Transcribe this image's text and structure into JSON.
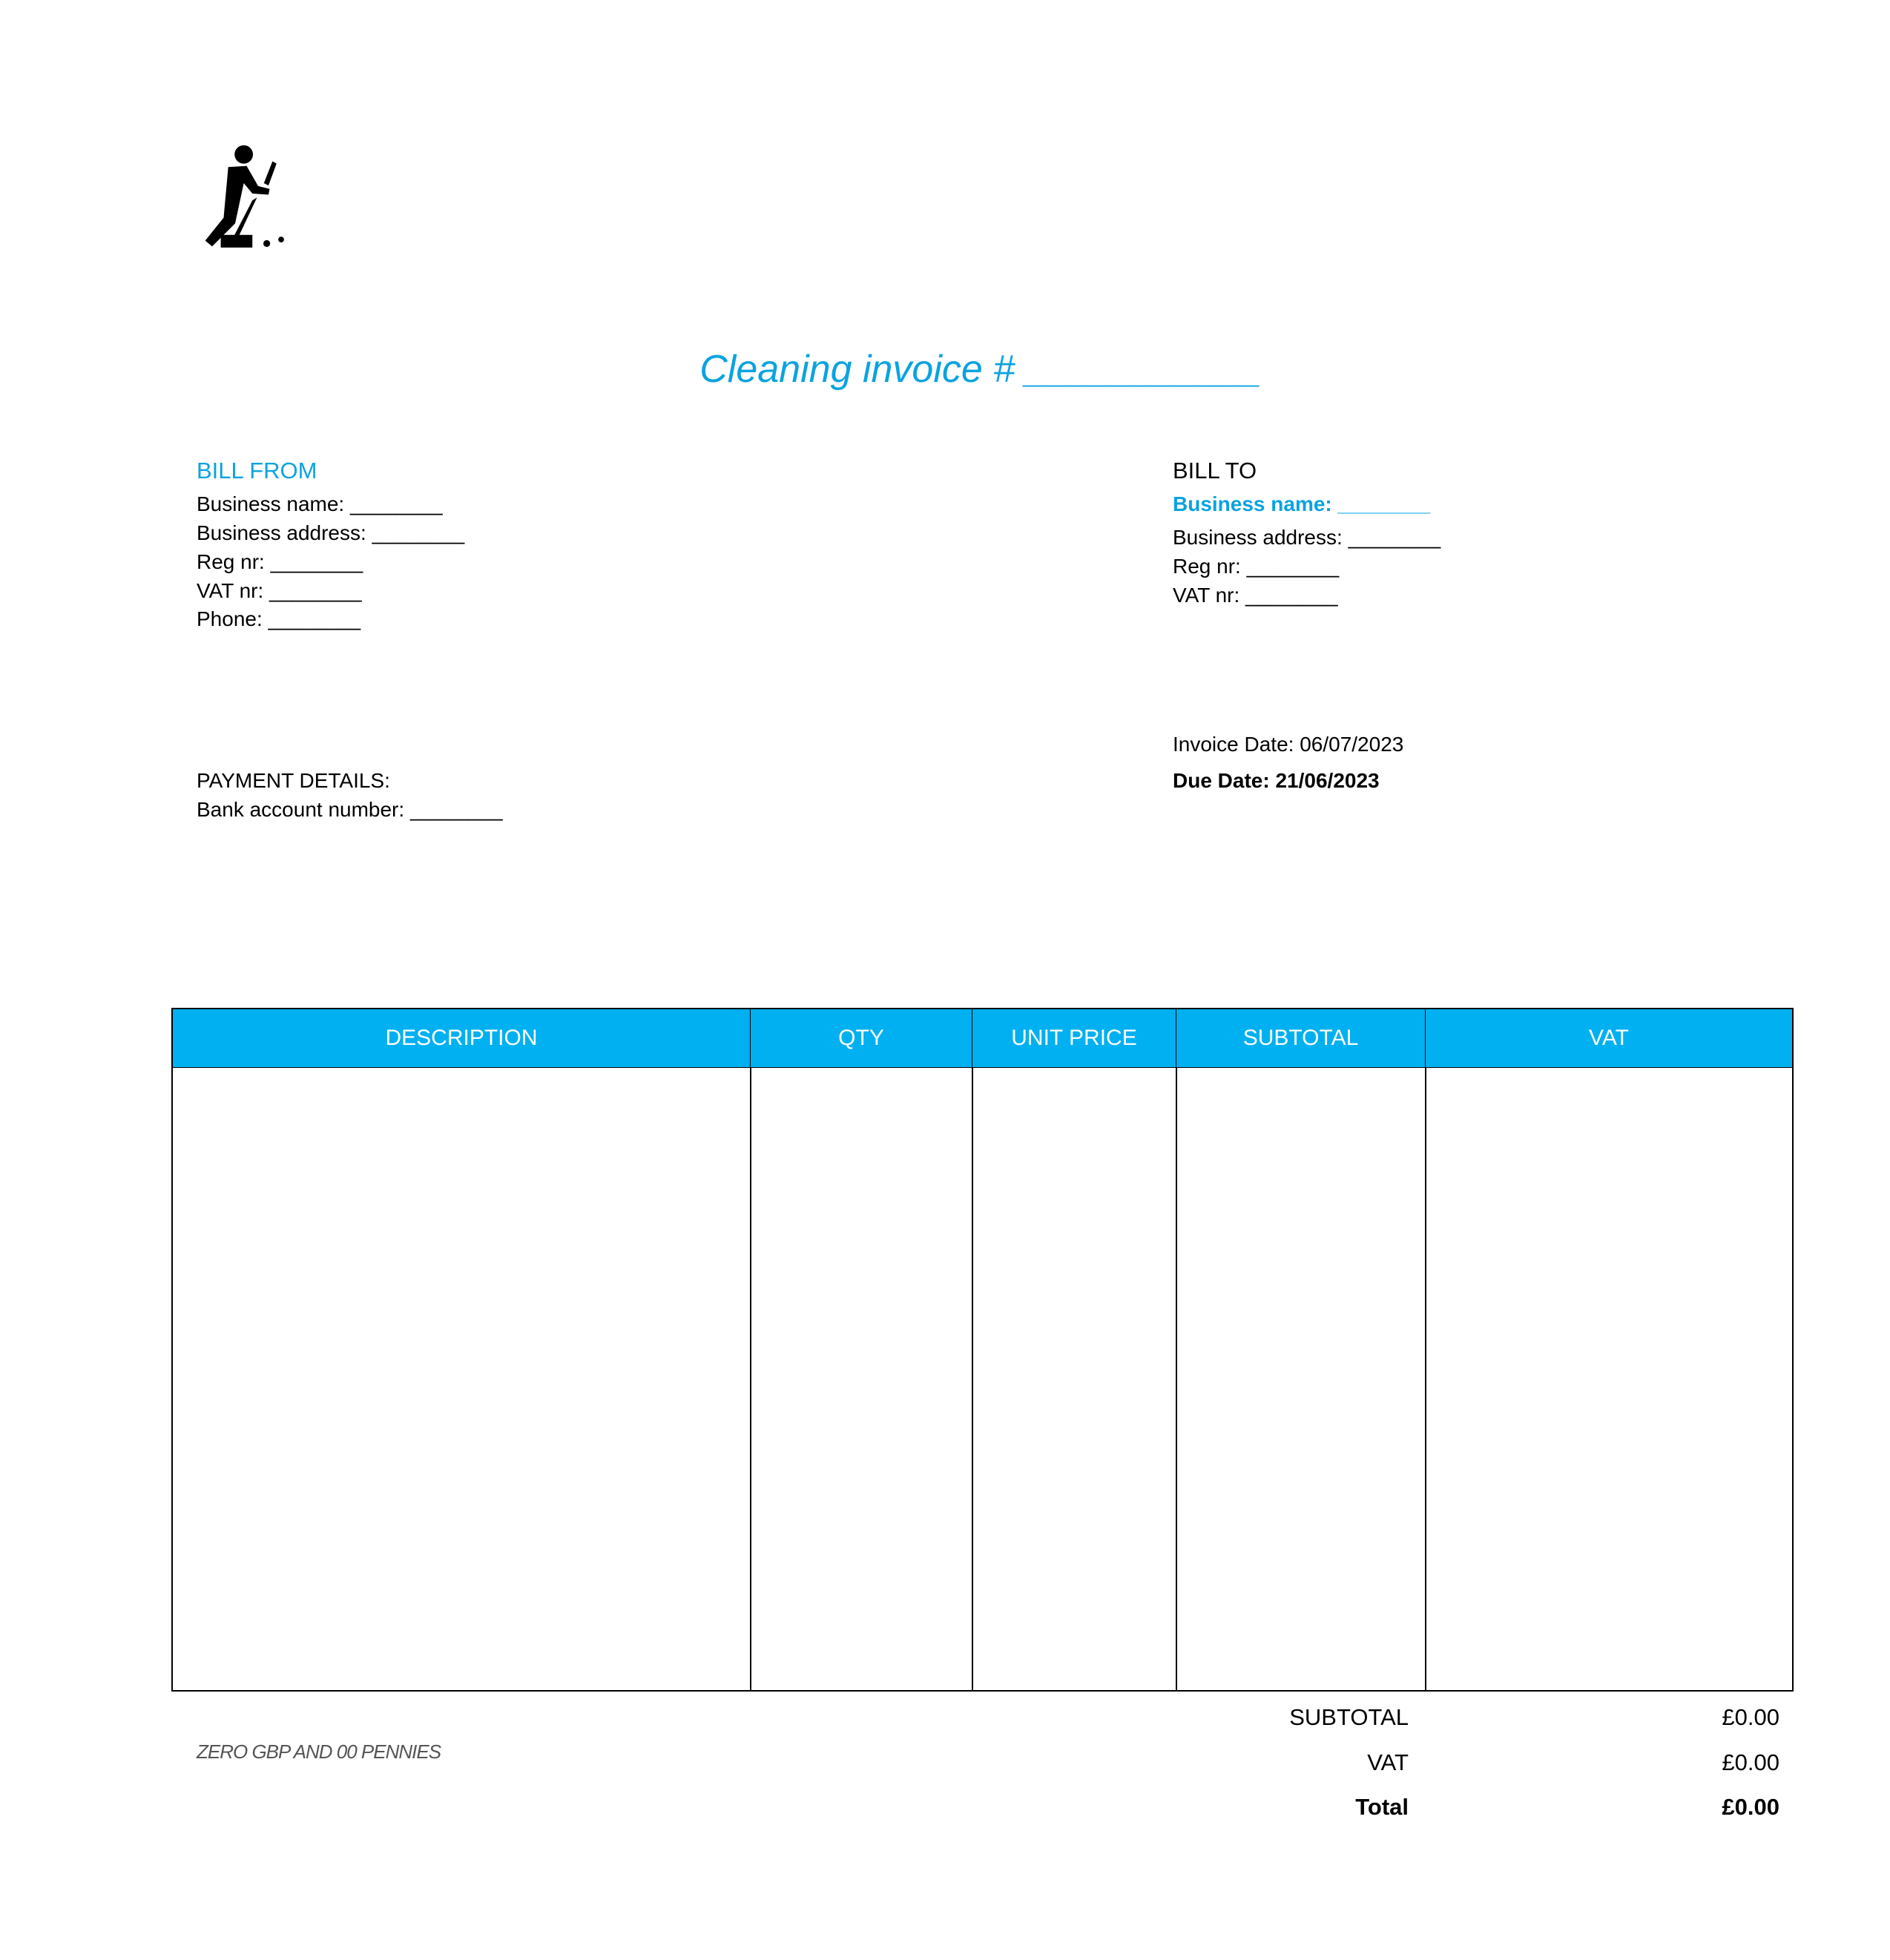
{
  "logo": {
    "icon": "person-sweeping-icon"
  },
  "title": "Cleaning invoice # ___________",
  "bill_from": {
    "heading": "BILL FROM",
    "lines": [
      "Business name: ________",
      "Business address: ________",
      "Reg nr: ________",
      "VAT nr: ________",
      "Phone: ________"
    ]
  },
  "bill_to": {
    "heading": "BILL TO",
    "business_name": "Business name: ________",
    "lines": [
      "Business address: ________",
      "Reg nr: ________",
      "VAT nr: ________"
    ]
  },
  "payment": {
    "heading": "PAYMENT DETAILS:",
    "bank": "Bank account number: ________"
  },
  "dates": {
    "invoice_date": "Invoice Date: 06/07/2023",
    "due_date": "Due Date: 21/06/2023"
  },
  "table": {
    "headers": [
      "DESCRIPTION",
      "QTY",
      "UNIT PRICE",
      "SUBTOTAL",
      "VAT"
    ],
    "header_color": "#00b0f0"
  },
  "amount_words": "ZERO GBP AND 00 PENNIES",
  "totals": {
    "subtotal_label": "SUBTOTAL",
    "subtotal_value": "£0.00",
    "vat_label": "VAT",
    "vat_value": "£0.00",
    "total_label": "Total",
    "total_value": "£0.00"
  }
}
